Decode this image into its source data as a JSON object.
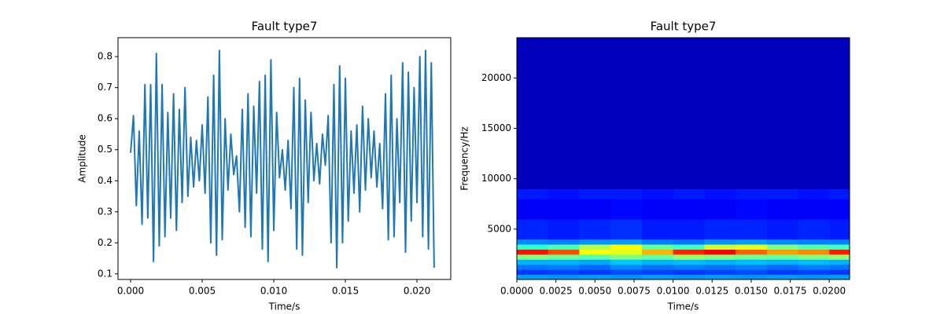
{
  "chart_data": [
    {
      "type": "line",
      "title": "Fault type7",
      "xlabel": "Time/s",
      "ylabel": "Amplitude",
      "color": "#1f77b4",
      "xlim": [
        -0.00088,
        0.02236
      ],
      "ylim": [
        0.082,
        0.861
      ],
      "xticks": [
        {
          "value": 0,
          "label": "0.000"
        },
        0.005,
        {
          "value": 0.01,
          "label": "0.010"
        },
        0.015,
        {
          "value": 0.02,
          "label": "0.020"
        }
      ],
      "yticks": [
        0.1,
        0.2,
        0.3,
        0.4,
        0.5,
        0.6,
        0.7,
        0.8
      ],
      "x": [
        0,
        0.0002,
        0.0004,
        0.0006,
        0.0008,
        0.001,
        0.0012,
        0.0014,
        0.0016,
        0.0018,
        0.002,
        0.0022,
        0.0024,
        0.0026,
        0.0028,
        0.003,
        0.0032,
        0.0034,
        0.0036,
        0.0038,
        0.004,
        0.0042,
        0.0044,
        0.0046,
        0.0048,
        0.005,
        0.0052,
        0.0054,
        0.0056,
        0.0058,
        0.006,
        0.0062,
        0.0064,
        0.0066,
        0.0068,
        0.007,
        0.0072,
        0.0074,
        0.0076,
        0.0078,
        0.008,
        0.0082,
        0.0084,
        0.0086,
        0.0088,
        0.009,
        0.0092,
        0.0094,
        0.0096,
        0.0098,
        0.01,
        0.0102,
        0.0104,
        0.0106,
        0.0108,
        0.011,
        0.0112,
        0.0114,
        0.0116,
        0.0118,
        0.012,
        0.0122,
        0.0124,
        0.0126,
        0.0128,
        0.013,
        0.0132,
        0.0134,
        0.0136,
        0.0138,
        0.014,
        0.0142,
        0.0144,
        0.0146,
        0.0148,
        0.015,
        0.0152,
        0.0154,
        0.0156,
        0.0158,
        0.016,
        0.0162,
        0.0164,
        0.0166,
        0.0168,
        0.017,
        0.0172,
        0.0174,
        0.0176,
        0.0178,
        0.018,
        0.0182,
        0.0184,
        0.0186,
        0.0188,
        0.019,
        0.0192,
        0.0194,
        0.0196,
        0.0198,
        0.02,
        0.0202,
        0.0204,
        0.0206,
        0.0208,
        0.021,
        0.0212
      ],
      "values": [
        0.49,
        0.61,
        0.32,
        0.56,
        0.26,
        0.71,
        0.28,
        0.71,
        0.14,
        0.81,
        0.19,
        0.71,
        0.22,
        0.62,
        0.28,
        0.68,
        0.24,
        0.63,
        0.33,
        0.7,
        0.35,
        0.54,
        0.38,
        0.53,
        0.4,
        0.58,
        0.36,
        0.67,
        0.2,
        0.74,
        0.16,
        0.82,
        0.21,
        0.6,
        0.37,
        0.55,
        0.42,
        0.48,
        0.3,
        0.63,
        0.25,
        0.68,
        0.22,
        0.64,
        0.36,
        0.72,
        0.18,
        0.74,
        0.14,
        0.79,
        0.24,
        0.62,
        0.41,
        0.5,
        0.37,
        0.53,
        0.31,
        0.7,
        0.18,
        0.73,
        0.16,
        0.66,
        0.33,
        0.62,
        0.4,
        0.52,
        0.39,
        0.55,
        0.45,
        0.61,
        0.2,
        0.71,
        0.12,
        0.77,
        0.2,
        0.73,
        0.27,
        0.56,
        0.36,
        0.58,
        0.3,
        0.64,
        0.37,
        0.6,
        0.41,
        0.56,
        0.38,
        0.52,
        0.31,
        0.68,
        0.21,
        0.74,
        0.22,
        0.6,
        0.33,
        0.78,
        0.17,
        0.75,
        0.27,
        0.7,
        0.33,
        0.8,
        0.22,
        0.82,
        0.18,
        0.78,
        0.12
      ]
    },
    {
      "type": "heatmap",
      "title": "Fault type7",
      "xlabel": "Time/s",
      "ylabel": "Frequency/Hz",
      "colormap": "jet",
      "zlim": [
        0,
        1
      ],
      "xlim": [
        0,
        0.0213
      ],
      "ylim": [
        0,
        24000
      ],
      "xticks": [
        {
          "value": 0,
          "label": "0.0000"
        },
        0.0025,
        {
          "value": 0.005,
          "label": "0.0050"
        },
        0.0075,
        {
          "value": 0.01,
          "label": "0.0100"
        },
        0.0125,
        {
          "value": 0.015,
          "label": "0.0150"
        },
        0.0175,
        {
          "value": 0.02,
          "label": "0.0200"
        }
      ],
      "yticks": [
        5000,
        10000,
        15000,
        20000
      ],
      "x_edges": [
        0,
        0.002,
        0.004,
        0.006,
        0.008,
        0.01,
        0.012,
        0.014,
        0.016,
        0.018,
        0.02,
        0.0213
      ],
      "y_edges": [
        0,
        500,
        1000,
        1500,
        2000,
        2500,
        3000,
        3500,
        4000,
        6000,
        8000,
        9000,
        24000
      ],
      "z": [
        [
          0.28,
          0.27,
          0.28,
          0.27,
          0.28,
          0.27,
          0.28,
          0.27,
          0.28,
          0.27,
          0.28
        ],
        [
          0.18,
          0.19,
          0.18,
          0.2,
          0.19,
          0.18,
          0.19,
          0.2,
          0.18,
          0.19,
          0.18
        ],
        [
          0.24,
          0.25,
          0.23,
          0.26,
          0.24,
          0.25,
          0.24,
          0.25,
          0.23,
          0.25,
          0.24
        ],
        [
          0.3,
          0.3,
          0.29,
          0.32,
          0.3,
          0.31,
          0.3,
          0.31,
          0.3,
          0.31,
          0.3
        ],
        [
          0.5,
          0.48,
          0.46,
          0.5,
          0.47,
          0.52,
          0.5,
          0.48,
          0.47,
          0.5,
          0.52
        ],
        [
          0.86,
          0.8,
          0.62,
          0.6,
          0.7,
          0.84,
          0.88,
          0.78,
          0.72,
          0.74,
          0.85
        ],
        [
          0.42,
          0.45,
          0.55,
          0.62,
          0.48,
          0.44,
          0.58,
          0.6,
          0.5,
          0.46,
          0.44
        ],
        [
          0.26,
          0.25,
          0.27,
          0.28,
          0.25,
          0.24,
          0.27,
          0.28,
          0.26,
          0.25,
          0.25
        ],
        [
          0.16,
          0.15,
          0.16,
          0.17,
          0.15,
          0.15,
          0.16,
          0.16,
          0.15,
          0.16,
          0.15
        ],
        [
          0.12,
          0.12,
          0.12,
          0.13,
          0.12,
          0.12,
          0.12,
          0.13,
          0.12,
          0.12,
          0.12
        ],
        [
          0.15,
          0.14,
          0.15,
          0.15,
          0.14,
          0.15,
          0.14,
          0.15,
          0.15,
          0.14,
          0.15
        ],
        [
          0.06,
          0.06,
          0.06,
          0.06,
          0.06,
          0.06,
          0.06,
          0.06,
          0.06,
          0.06,
          0.06
        ]
      ]
    }
  ]
}
